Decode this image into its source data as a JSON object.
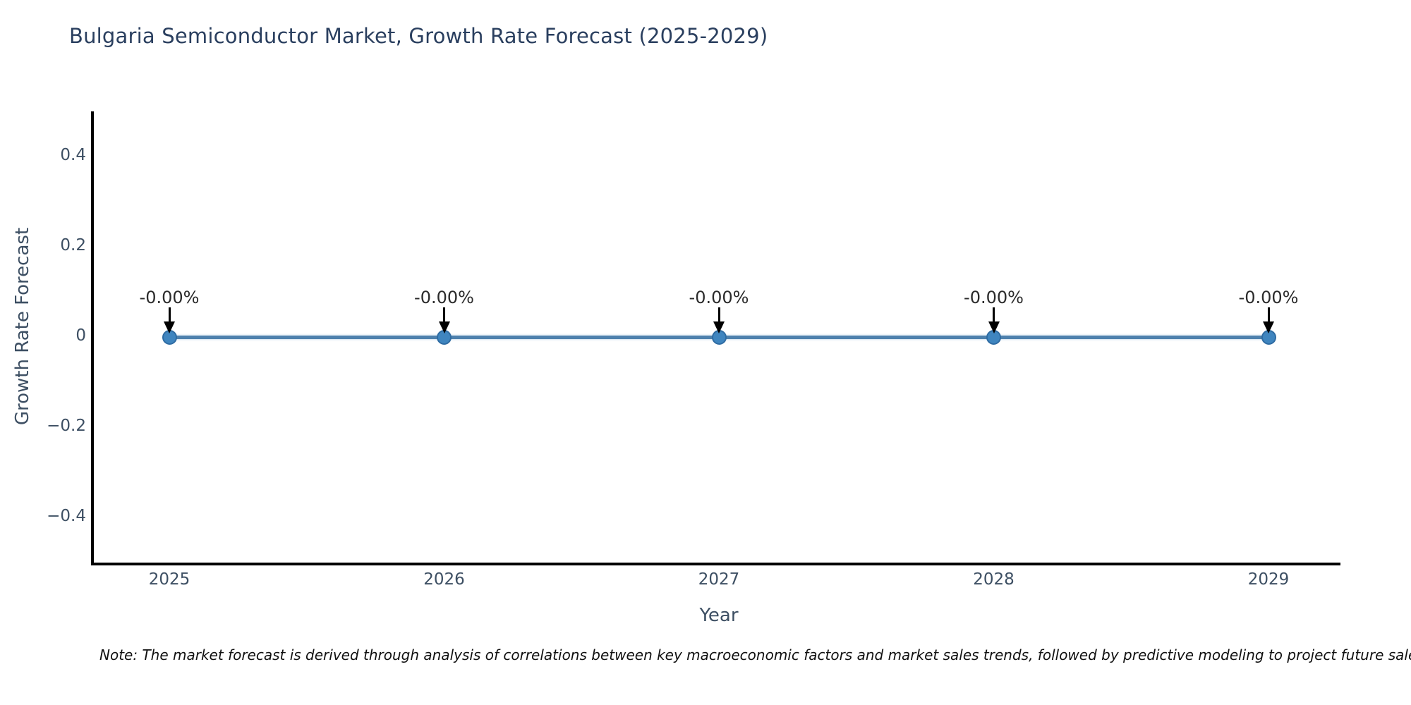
{
  "page": {
    "note": "Note: The market forecast is derived through analysis of correlations between key macroeconomic factors and market sales trends, followed by predictive modeling to project future sales."
  },
  "chart_data": {
    "type": "line",
    "title": "Bulgaria Semiconductor Market, Growth Rate Forecast (2025-2029)",
    "xlabel": "Year",
    "ylabel": "Growth Rate Forecast",
    "x": [
      2025,
      2026,
      2027,
      2028,
      2029
    ],
    "series": [
      {
        "name": "Growth Rate Forecast",
        "values": [
          0,
          0,
          0,
          0,
          0
        ]
      }
    ],
    "point_labels": [
      "-0.00%",
      "-0.00%",
      "-0.00%",
      "-0.00%",
      "-0.00%"
    ],
    "xtick_labels": [
      "2025",
      "2026",
      "2027",
      "2028",
      "2029"
    ],
    "yticks": [
      0.4,
      0.2,
      0,
      -0.2,
      -0.4
    ],
    "ytick_labels": [
      "0.4",
      "0.2",
      "0",
      "−0.2",
      "−0.4"
    ],
    "ylim": [
      -0.5,
      0.5
    ],
    "grid": false,
    "legend": "none",
    "annotation_arrow": "down-arrow",
    "colors": {
      "line": "#4e81ad",
      "marker": "#3f85bf",
      "axis": "#000000",
      "title": "#2a3f5f",
      "ticks": "#3d4f63",
      "annotation_text": "#2b2b2b"
    }
  }
}
